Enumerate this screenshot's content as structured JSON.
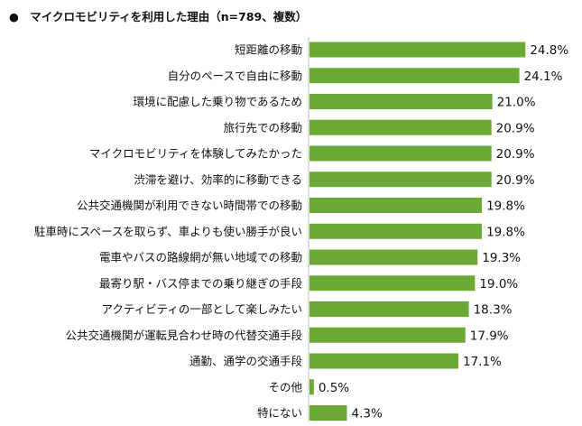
{
  "chart_data": {
    "type": "bar",
    "orientation": "horizontal",
    "title": "マイクロモビリティを利用した理由（n=789、複数）",
    "title_bullet": "●",
    "categories": [
      "短距離の移動",
      "自分のペースで自由に移動",
      "環境に配慮した乗り物であるため",
      "旅行先での移動",
      "マイクロモビリティを体験してみたかった",
      "渋滞を避け、効率的に移動できる",
      "公共交通機関が利用できない時間帯での移動",
      "駐車時にスペースを取らず、車よりも使い勝手が良い",
      "電車やバスの路線網が無い地域での移動",
      "最寄り駅・バス停までの乗り継ぎの手段",
      "アクティビティの一部として楽しみたい",
      "公共交通機関が運転見合わせ時の代替交通手段",
      "通勤、通学の交通手段",
      "その他",
      "特にない"
    ],
    "values": [
      24.8,
      24.1,
      21.0,
      20.9,
      20.9,
      20.9,
      19.8,
      19.8,
      19.3,
      19.0,
      18.3,
      17.9,
      17.1,
      0.5,
      4.3
    ],
    "value_labels": [
      "24.8%",
      "24.1%",
      "21.0%",
      "20.9%",
      "20.9%",
      "20.9%",
      "19.8%",
      "19.8%",
      "19.3%",
      "19.0%",
      "18.3%",
      "17.9%",
      "17.1%",
      "0.5%",
      "4.3%"
    ],
    "xlim": [
      0,
      30
    ],
    "grid": false,
    "legend": "none",
    "colors": {
      "bar": "#6aaa34",
      "axis": "#bfbfbf",
      "text": "#111111"
    }
  }
}
